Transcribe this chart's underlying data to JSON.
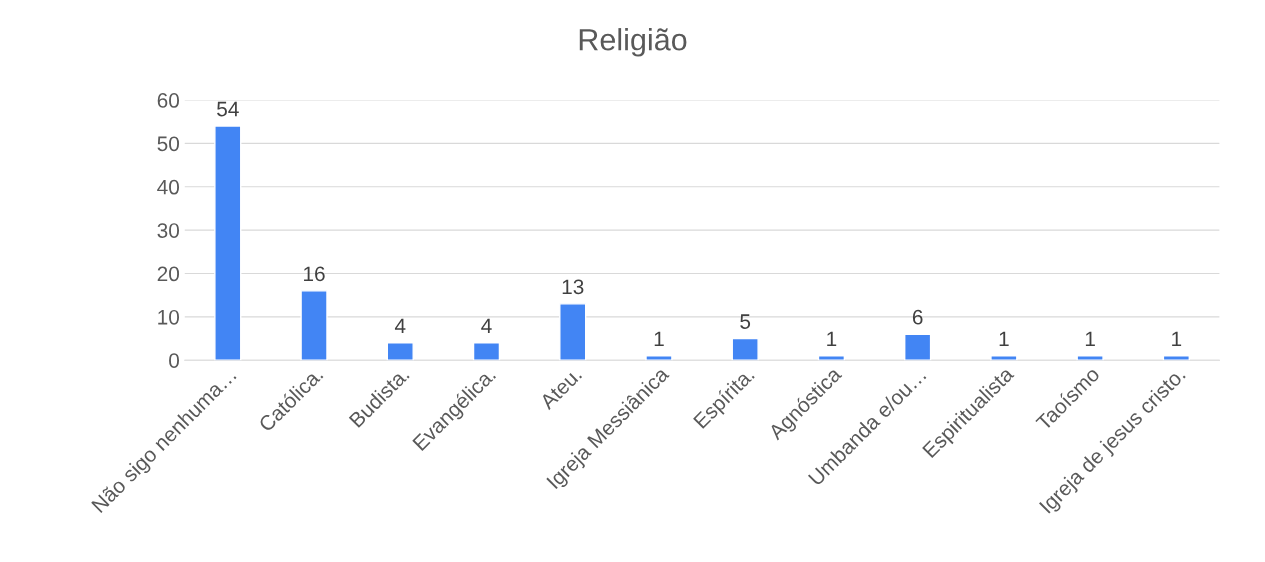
{
  "chart_data": {
    "type": "bar",
    "title": "Religião",
    "categories": [
      "Não sigo nenhuma…",
      "Católica.",
      "Budista.",
      "Evangélica.",
      "Ateu.",
      "Igreja Messiânica",
      "Espírita.",
      "Agnóstica",
      "Umbanda e/ou…",
      "Espiritualista",
      "Taoísmo",
      "Igreja de jesus cristo."
    ],
    "values": [
      54,
      16,
      4,
      4,
      13,
      1,
      5,
      1,
      6,
      1,
      1,
      1
    ],
    "color": "#4285f4",
    "ylim": [
      0,
      60
    ],
    "yticks": [
      0,
      10,
      20,
      30,
      40,
      50,
      60
    ],
    "grid": "y",
    "data_labels": true
  }
}
